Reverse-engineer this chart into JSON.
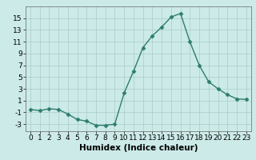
{
  "x": [
    0,
    1,
    2,
    3,
    4,
    5,
    6,
    7,
    8,
    9,
    10,
    11,
    12,
    13,
    14,
    15,
    16,
    17,
    18,
    19,
    20,
    21,
    22,
    23
  ],
  "y": [
    -0.5,
    -0.7,
    -0.4,
    -0.5,
    -1.3,
    -2.2,
    -2.5,
    -3.2,
    -3.2,
    -3.0,
    2.3,
    6.0,
    10.0,
    12.0,
    13.5,
    15.2,
    15.8,
    11.0,
    7.0,
    4.2,
    3.0,
    2.0,
    1.3,
    1.2
  ],
  "line_color": "#2e7d6e",
  "marker": "D",
  "marker_size": 2.5,
  "linewidth": 1.0,
  "bg_color": "#cceae8",
  "grid_color": "#aacccc",
  "xlabel": "Humidex (Indice chaleur)",
  "xlim": [
    -0.5,
    23.5
  ],
  "ylim": [
    -4.2,
    17
  ],
  "yticks": [
    -3,
    -1,
    1,
    3,
    5,
    7,
    9,
    11,
    13,
    15
  ],
  "xticks": [
    0,
    1,
    2,
    3,
    4,
    5,
    6,
    7,
    8,
    9,
    10,
    11,
    12,
    13,
    14,
    15,
    16,
    17,
    18,
    19,
    20,
    21,
    22,
    23
  ],
  "xlabel_fontsize": 7.5,
  "tick_fontsize": 6.5
}
